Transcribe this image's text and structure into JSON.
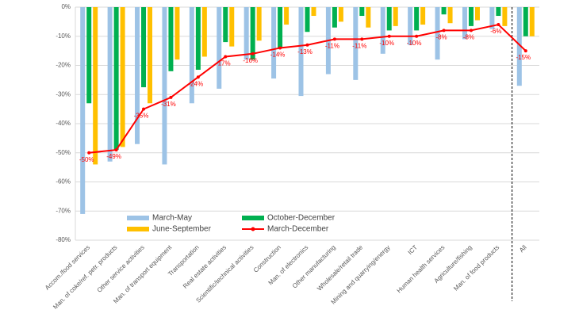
{
  "chart_data": {
    "type": "bar",
    "categories": [
      "Accom./food services",
      "Man. of coke/ref. petr. products",
      "Other service activities",
      "Man. of transport equipment",
      "Transportation",
      "Real estate activities",
      "Scientific/technical activities",
      "Construction",
      "Man. of electronics",
      "Other manufacturing",
      "Wholesale/retail trade",
      "Mining and quarrying/energy",
      "ICT",
      "Human health services",
      "Agriculture/fishing",
      "Man. of food products",
      "All"
    ],
    "series": [
      {
        "name": "March-May",
        "color": "#9dc3e6",
        "values": [
          -71,
          -53,
          -47,
          -54,
          -33,
          -28,
          -18,
          -24.5,
          -30.5,
          -23,
          -25,
          -16,
          -13,
          -18,
          -11,
          -7.5,
          -27
        ]
      },
      {
        "name": "October-December",
        "color": "#00b050",
        "values": [
          -33,
          -49,
          -27.5,
          -22,
          -21.5,
          -12,
          -18,
          -14,
          -8.5,
          -7,
          -3,
          -8,
          -8,
          -2.5,
          -6.5,
          -3,
          -10
        ]
      },
      {
        "name": "June-September",
        "color": "#ffc000",
        "values": [
          -54,
          -48,
          -33,
          -18,
          -17,
          -13.5,
          -11.5,
          -6,
          -3,
          -5,
          -7,
          -6.5,
          -6,
          -5.5,
          -4.5,
          -6.5,
          -10
        ]
      },
      {
        "name": "March-December",
        "type": "line",
        "color": "#ff0000",
        "values": [
          -50,
          -49,
          -35,
          -31,
          -24,
          -17,
          -16,
          -14,
          -13,
          -11,
          -11,
          -10,
          -10,
          -8,
          -8,
          -6,
          -15
        ],
        "value_labels": [
          "-50%",
          "-49%",
          "-35%",
          "-31%",
          "-24%",
          "-17%",
          "-16%",
          "-14%",
          "-13%",
          "-11%",
          "-11%",
          "-10%",
          "-10%",
          "-8%",
          "-8%",
          "-6%",
          "-15%"
        ]
      }
    ],
    "ylim": [
      -80,
      0
    ],
    "yticks": [
      {
        "value": 0,
        "label": "0%"
      },
      {
        "value": -10,
        "label": "-10%"
      },
      {
        "value": -20,
        "label": "-20%"
      },
      {
        "value": -30,
        "label": "-30%"
      },
      {
        "value": -40,
        "label": "-40%"
      },
      {
        "value": -50,
        "label": "-50%"
      },
      {
        "value": -60,
        "label": "-60%"
      },
      {
        "value": -70,
        "label": "-70%"
      },
      {
        "value": -80,
        "label": "-80%"
      }
    ],
    "grid": true
  }
}
